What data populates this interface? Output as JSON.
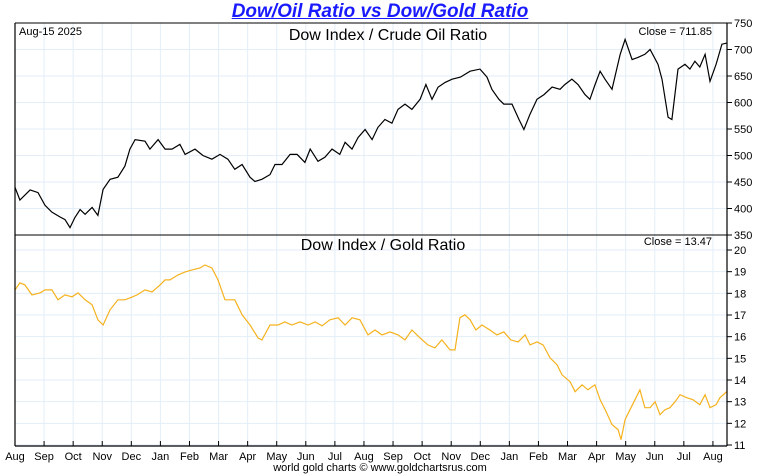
{
  "title": "Dow/Oil Ratio vs Dow/Gold Ratio",
  "footer": "world gold charts © www.goldchartsrus.com",
  "chart_data": [
    {
      "type": "line",
      "title": "Dow Index / Crude Oil Ratio",
      "date_label": "Aug-15  2025",
      "close_label": "Close = 711.85",
      "line_color": "#000000",
      "grid": true,
      "ylim": [
        350,
        750
      ],
      "yticks": [
        350,
        400,
        450,
        500,
        550,
        600,
        650,
        700,
        750
      ],
      "x_unit": "months since Aug 2023",
      "xlim": [
        0,
        24.5
      ],
      "points": [
        [
          0.0,
          440
        ],
        [
          0.17,
          416
        ],
        [
          0.52,
          435
        ],
        [
          0.79,
          430
        ],
        [
          1.03,
          406
        ],
        [
          1.27,
          393
        ],
        [
          1.55,
          384
        ],
        [
          1.72,
          379
        ],
        [
          1.89,
          364
        ],
        [
          2.06,
          383
        ],
        [
          2.24,
          398
        ],
        [
          2.41,
          389
        ],
        [
          2.65,
          402
        ],
        [
          2.85,
          387
        ],
        [
          3.03,
          436
        ],
        [
          3.27,
          455
        ],
        [
          3.54,
          459
        ],
        [
          3.78,
          480
        ],
        [
          3.95,
          512
        ],
        [
          4.13,
          530
        ],
        [
          4.47,
          527
        ],
        [
          4.64,
          512
        ],
        [
          4.92,
          530
        ],
        [
          5.16,
          512
        ],
        [
          5.4,
          512
        ],
        [
          5.67,
          521
        ],
        [
          5.85,
          502
        ],
        [
          6.19,
          512
        ],
        [
          6.46,
          500
        ],
        [
          6.77,
          493
        ],
        [
          7.05,
          502
        ],
        [
          7.32,
          493
        ],
        [
          7.56,
          474
        ],
        [
          7.81,
          483
        ],
        [
          8.08,
          459
        ],
        [
          8.25,
          451
        ],
        [
          8.49,
          455
        ],
        [
          8.77,
          464
        ],
        [
          8.94,
          483
        ],
        [
          9.18,
          483
        ],
        [
          9.46,
          502
        ],
        [
          9.7,
          502
        ],
        [
          9.97,
          487
        ],
        [
          10.15,
          512
        ],
        [
          10.42,
          489
        ],
        [
          10.66,
          497
        ],
        [
          10.9,
          512
        ],
        [
          11.17,
          502
        ],
        [
          11.35,
          525
        ],
        [
          11.59,
          512
        ],
        [
          11.8,
          534
        ],
        [
          12.04,
          549
        ],
        [
          12.28,
          530
        ],
        [
          12.48,
          553
        ],
        [
          12.72,
          568
        ],
        [
          12.96,
          561
        ],
        [
          13.17,
          587
        ],
        [
          13.41,
          597
        ],
        [
          13.65,
          587
        ],
        [
          13.93,
          606
        ],
        [
          14.13,
          634
        ],
        [
          14.34,
          606
        ],
        [
          14.55,
          629
        ],
        [
          14.79,
          638
        ],
        [
          15.03,
          644
        ],
        [
          15.32,
          648
        ],
        [
          15.47,
          653
        ],
        [
          15.65,
          659
        ],
        [
          15.99,
          663
        ],
        [
          16.23,
          648
        ],
        [
          16.4,
          625
        ],
        [
          16.64,
          606
        ],
        [
          16.81,
          597
        ],
        [
          17.09,
          597
        ],
        [
          17.33,
          568
        ],
        [
          17.5,
          549
        ],
        [
          17.71,
          578
        ],
        [
          17.95,
          606
        ],
        [
          18.19,
          615
        ],
        [
          18.47,
          629
        ],
        [
          18.74,
          625
        ],
        [
          18.91,
          634
        ],
        [
          19.15,
          644
        ],
        [
          19.36,
          634
        ],
        [
          19.6,
          615
        ],
        [
          19.77,
          606
        ],
        [
          19.95,
          634
        ],
        [
          20.12,
          659
        ],
        [
          20.29,
          644
        ],
        [
          20.53,
          625
        ],
        [
          20.81,
          691
        ],
        [
          20.98,
          719
        ],
        [
          21.22,
          681
        ],
        [
          21.42,
          685
        ],
        [
          21.66,
          691
        ],
        [
          21.84,
          700
        ],
        [
          22.11,
          672
        ],
        [
          22.25,
          644
        ],
        [
          22.46,
          572
        ],
        [
          22.59,
          568
        ],
        [
          22.8,
          663
        ],
        [
          23.04,
          672
        ],
        [
          23.21,
          663
        ],
        [
          23.38,
          678
        ],
        [
          23.55,
          667
        ],
        [
          23.73,
          691
        ],
        [
          23.9,
          640
        ],
        [
          24.11,
          672
        ],
        [
          24.31,
          710
        ],
        [
          24.48,
          712
        ]
      ]
    },
    {
      "type": "line",
      "title": "Dow Index / Gold Ratio",
      "close_label": "Close = 13.47",
      "line_color": "#f5b21e",
      "grid": true,
      "ylim": [
        11,
        20
      ],
      "yticks": [
        11,
        12,
        13,
        14,
        15,
        16,
        17,
        18,
        19,
        20
      ],
      "x_unit": "months since Aug 2023",
      "xlim": [
        0,
        24.5
      ],
      "points": [
        [
          0.0,
          18.16
        ],
        [
          0.17,
          18.48
        ],
        [
          0.34,
          18.39
        ],
        [
          0.58,
          17.93
        ],
        [
          0.86,
          18.02
        ],
        [
          1.03,
          18.16
        ],
        [
          1.27,
          18.16
        ],
        [
          1.48,
          17.7
        ],
        [
          1.72,
          17.93
        ],
        [
          1.96,
          17.84
        ],
        [
          2.17,
          18.02
        ],
        [
          2.41,
          17.7
        ],
        [
          2.65,
          17.47
        ],
        [
          2.85,
          16.78
        ],
        [
          3.03,
          16.54
        ],
        [
          3.27,
          17.24
        ],
        [
          3.54,
          17.7
        ],
        [
          3.78,
          17.7
        ],
        [
          3.95,
          17.79
        ],
        [
          4.2,
          17.93
        ],
        [
          4.47,
          18.16
        ],
        [
          4.71,
          18.06
        ],
        [
          4.99,
          18.39
        ],
        [
          5.16,
          18.62
        ],
        [
          5.33,
          18.62
        ],
        [
          5.61,
          18.85
        ],
        [
          5.85,
          18.99
        ],
        [
          6.09,
          19.08
        ],
        [
          6.36,
          19.17
        ],
        [
          6.53,
          19.31
        ],
        [
          6.77,
          19.17
        ],
        [
          6.98,
          18.62
        ],
        [
          7.22,
          17.7
        ],
        [
          7.56,
          17.7
        ],
        [
          7.81,
          17.01
        ],
        [
          8.08,
          16.54
        ],
        [
          8.36,
          15.94
        ],
        [
          8.49,
          15.85
        ],
        [
          8.77,
          16.54
        ],
        [
          9.04,
          16.54
        ],
        [
          9.28,
          16.68
        ],
        [
          9.52,
          16.54
        ],
        [
          9.8,
          16.68
        ],
        [
          10.08,
          16.54
        ],
        [
          10.32,
          16.68
        ],
        [
          10.56,
          16.5
        ],
        [
          10.83,
          16.78
        ],
        [
          11.11,
          16.87
        ],
        [
          11.35,
          16.54
        ],
        [
          11.59,
          16.87
        ],
        [
          11.86,
          16.78
        ],
        [
          12.14,
          16.08
        ],
        [
          12.38,
          16.31
        ],
        [
          12.62,
          16.08
        ],
        [
          12.9,
          16.22
        ],
        [
          13.17,
          16.08
        ],
        [
          13.41,
          15.85
        ],
        [
          13.65,
          16.31
        ],
        [
          13.93,
          15.94
        ],
        [
          14.2,
          15.62
        ],
        [
          14.44,
          15.48
        ],
        [
          14.68,
          15.85
        ],
        [
          14.96,
          15.39
        ],
        [
          15.13,
          15.39
        ],
        [
          15.3,
          16.87
        ],
        [
          15.47,
          17.01
        ],
        [
          15.65,
          16.78
        ],
        [
          15.85,
          16.31
        ],
        [
          16.06,
          16.54
        ],
        [
          16.33,
          16.31
        ],
        [
          16.57,
          16.08
        ],
        [
          16.81,
          16.22
        ],
        [
          17.05,
          15.85
        ],
        [
          17.3,
          15.76
        ],
        [
          17.54,
          16.08
        ],
        [
          17.71,
          15.62
        ],
        [
          17.95,
          15.76
        ],
        [
          18.16,
          15.62
        ],
        [
          18.4,
          15.02
        ],
        [
          18.64,
          14.7
        ],
        [
          18.81,
          14.24
        ],
        [
          19.09,
          13.92
        ],
        [
          19.26,
          13.46
        ],
        [
          19.5,
          13.78
        ],
        [
          19.7,
          13.55
        ],
        [
          19.94,
          13.78
        ],
        [
          20.12,
          13.09
        ],
        [
          20.33,
          12.53
        ],
        [
          20.53,
          11.94
        ],
        [
          20.74,
          11.71
        ],
        [
          20.84,
          11.25
        ],
        [
          20.98,
          12.17
        ],
        [
          21.15,
          12.63
        ],
        [
          21.32,
          13.09
        ],
        [
          21.49,
          13.55
        ],
        [
          21.66,
          12.72
        ],
        [
          21.84,
          12.72
        ],
        [
          22.01,
          13.0
        ],
        [
          22.18,
          12.4
        ],
        [
          22.35,
          12.63
        ],
        [
          22.52,
          12.72
        ],
        [
          22.7,
          13.0
        ],
        [
          22.87,
          13.32
        ],
        [
          23.11,
          13.18
        ],
        [
          23.31,
          13.09
        ],
        [
          23.55,
          12.86
        ],
        [
          23.73,
          13.32
        ],
        [
          23.9,
          12.72
        ],
        [
          24.11,
          12.86
        ],
        [
          24.24,
          13.18
        ],
        [
          24.48,
          13.47
        ]
      ]
    }
  ],
  "x_axis": {
    "labels": [
      "Aug",
      "Sep",
      "Oct",
      "Nov",
      "Dec",
      "Jan",
      "Feb",
      "Mar",
      "Apr",
      "May",
      "Jun",
      "Jul",
      "Aug",
      "Sep",
      "Oct",
      "Nov",
      "Dec",
      "Jan",
      "Feb",
      "Mar",
      "Apr",
      "May",
      "Jun",
      "Jul",
      "Aug"
    ]
  }
}
